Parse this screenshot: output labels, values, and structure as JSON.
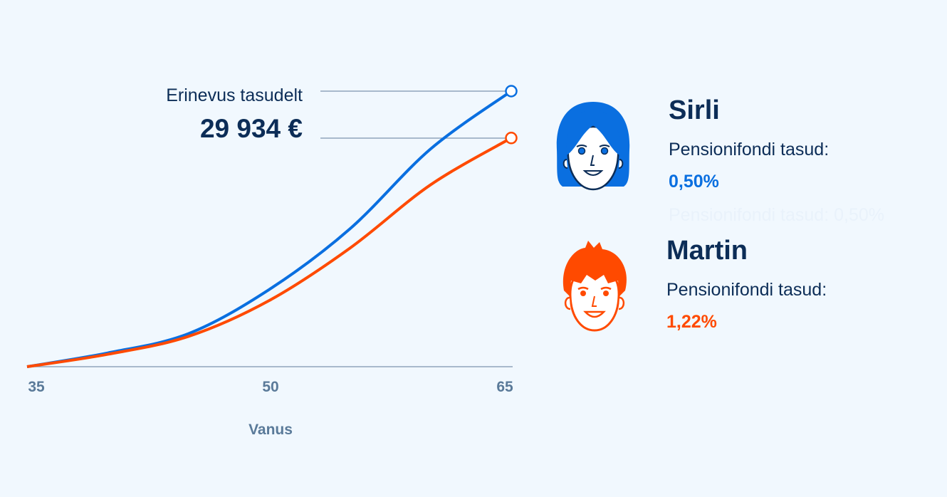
{
  "chart_data": {
    "type": "line",
    "xlabel": "Vanus",
    "x_ticks": [
      "35",
      "50",
      "65"
    ],
    "xlim": [
      35,
      65
    ],
    "grid": false,
    "series": [
      {
        "name": "Sirli",
        "color": "#0a6fe0",
        "x": [
          35,
          40,
          45,
          50,
          55,
          60,
          65
        ],
        "y": [
          0,
          5,
          12,
          28,
          50,
          79,
          100
        ]
      },
      {
        "name": "Martin",
        "color": "#ff4a00",
        "x": [
          35,
          40,
          45,
          50,
          55,
          60,
          65
        ],
        "y": [
          0,
          4.5,
          11,
          24,
          43,
          66,
          83
        ]
      }
    ],
    "annotation": {
      "label": "Erinevus tasudelt",
      "value": "29 934 €"
    }
  },
  "people": [
    {
      "name": "Sirli",
      "fee_label": "Pensionifondi tasud:",
      "fee_value": "0,50%",
      "color": "#0a6fe0",
      "avatar": "woman-avatar-icon"
    },
    {
      "name": "Martin",
      "fee_label": "Pensionifondi tasud:",
      "fee_value": "1,22%",
      "color": "#ff4a00",
      "avatar": "man-avatar-icon"
    }
  ],
  "ghost_text": "Pensionifondi tasud: 0,50%"
}
